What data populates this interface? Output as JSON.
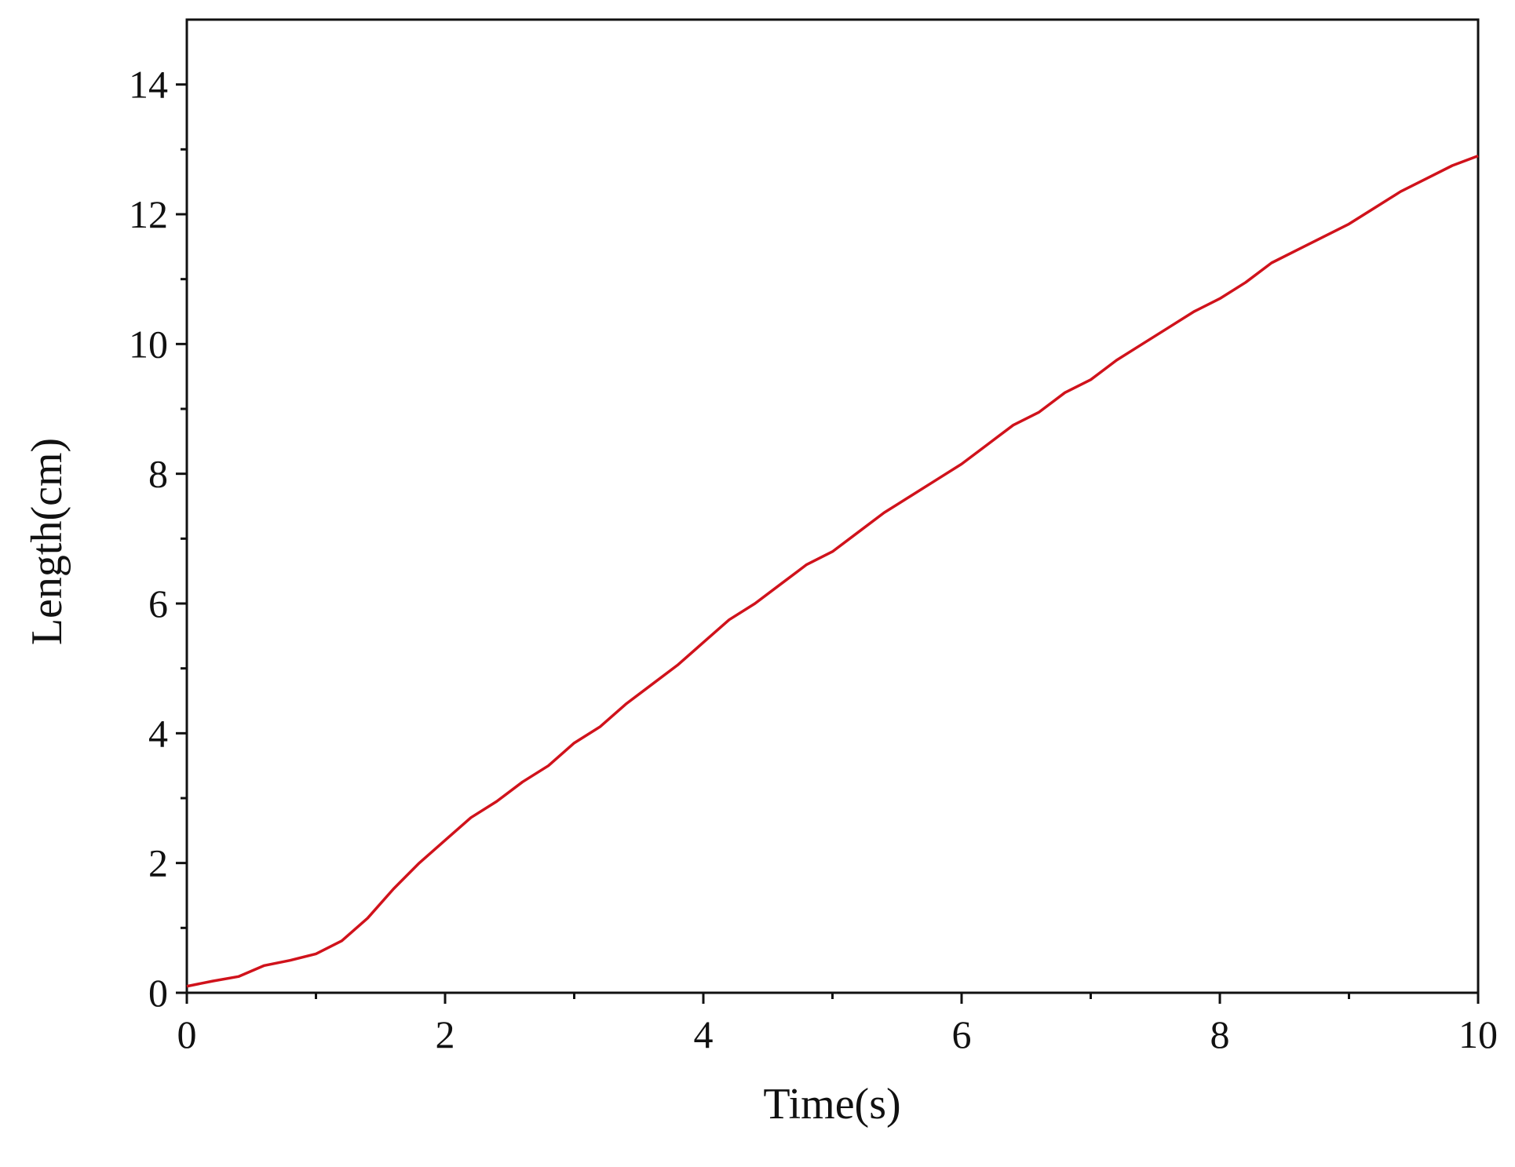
{
  "chart_data": {
    "type": "line",
    "x_label": "Time(s)",
    "y_label": "Length(cm)",
    "x": [
      0,
      0.2,
      0.4,
      0.6,
      0.8,
      1.0,
      1.2,
      1.4,
      1.6,
      1.8,
      2.0,
      2.2,
      2.4,
      2.6,
      2.8,
      3.0,
      3.2,
      3.4,
      3.6,
      3.8,
      4.0,
      4.2,
      4.4,
      4.6,
      4.8,
      5.0,
      5.2,
      5.4,
      5.6,
      5.8,
      6.0,
      6.2,
      6.4,
      6.6,
      6.8,
      7.0,
      7.2,
      7.4,
      7.6,
      7.8,
      8.0,
      8.2,
      8.4,
      8.6,
      8.8,
      9.0,
      9.2,
      9.4,
      9.6,
      9.8,
      10
    ],
    "series": [
      {
        "color": "#d0121b",
        "values": [
          0.1,
          0.18,
          0.25,
          0.42,
          0.5,
          0.6,
          0.8,
          1.15,
          1.6,
          2.0,
          2.35,
          2.7,
          2.95,
          3.25,
          3.5,
          3.85,
          4.1,
          4.45,
          4.75,
          5.05,
          5.4,
          5.75,
          6.0,
          6.3,
          6.6,
          6.8,
          7.1,
          7.4,
          7.65,
          7.9,
          8.15,
          8.45,
          8.75,
          8.95,
          9.25,
          9.45,
          9.75,
          10.0,
          10.25,
          10.5,
          10.7,
          10.95,
          11.25,
          11.45,
          11.65,
          11.85,
          12.1,
          12.35,
          12.55,
          12.75,
          12.9
        ]
      }
    ],
    "xlim": [
      0,
      10
    ],
    "xticks": [
      0,
      2,
      4,
      6,
      8,
      10
    ],
    "ylim": [
      0,
      15
    ],
    "yticks": [
      0,
      2,
      4,
      6,
      8,
      10,
      12,
      14
    ],
    "grid": false
  }
}
